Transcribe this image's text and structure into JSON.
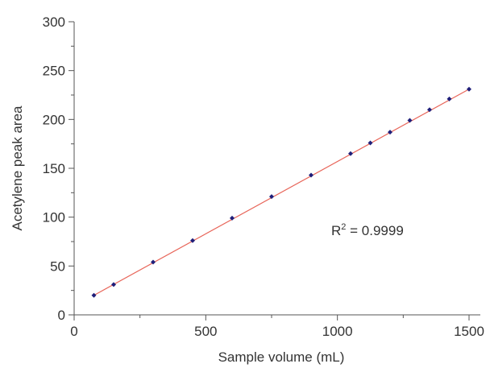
{
  "chart_data": {
    "type": "scatter",
    "title": "",
    "xlabel": "Sample volume (mL)",
    "ylabel": "Acetylene peak area",
    "xlim": [
      0,
      1500
    ],
    "ylim": [
      0,
      300
    ],
    "x_ticks": [
      0,
      500,
      1000,
      1500
    ],
    "y_ticks": [
      0,
      50,
      100,
      150,
      200,
      250,
      300
    ],
    "x_tick_labels": [
      "0",
      "500",
      "1000",
      "1500"
    ],
    "y_tick_labels": [
      "0",
      "50",
      "100",
      "150",
      "200",
      "250",
      "300"
    ],
    "grid": false,
    "legend": "none",
    "series": [
      {
        "points": [
          {
            "x": 75,
            "y": 20
          },
          {
            "x": 150,
            "y": 31
          },
          {
            "x": 300,
            "y": 54
          },
          {
            "x": 450,
            "y": 76
          },
          {
            "x": 600,
            "y": 99
          },
          {
            "x": 750,
            "y": 121
          },
          {
            "x": 900,
            "y": 143
          },
          {
            "x": 1050,
            "y": 165
          },
          {
            "x": 1125,
            "y": 176
          },
          {
            "x": 1200,
            "y": 187
          },
          {
            "x": 1275,
            "y": 199
          },
          {
            "x": 1350,
            "y": 210
          },
          {
            "x": 1425,
            "y": 221
          },
          {
            "x": 1500,
            "y": 231
          }
        ],
        "color": "#1f1f7a"
      }
    ],
    "trendline": {
      "type": "linear",
      "from": {
        "x": 75,
        "y": 20
      },
      "to": {
        "x": 1500,
        "y": 231
      },
      "color": "#e8665a"
    },
    "annotation": {
      "prefix": "R",
      "superscript": "2",
      "text": " = 0.9999"
    }
  }
}
